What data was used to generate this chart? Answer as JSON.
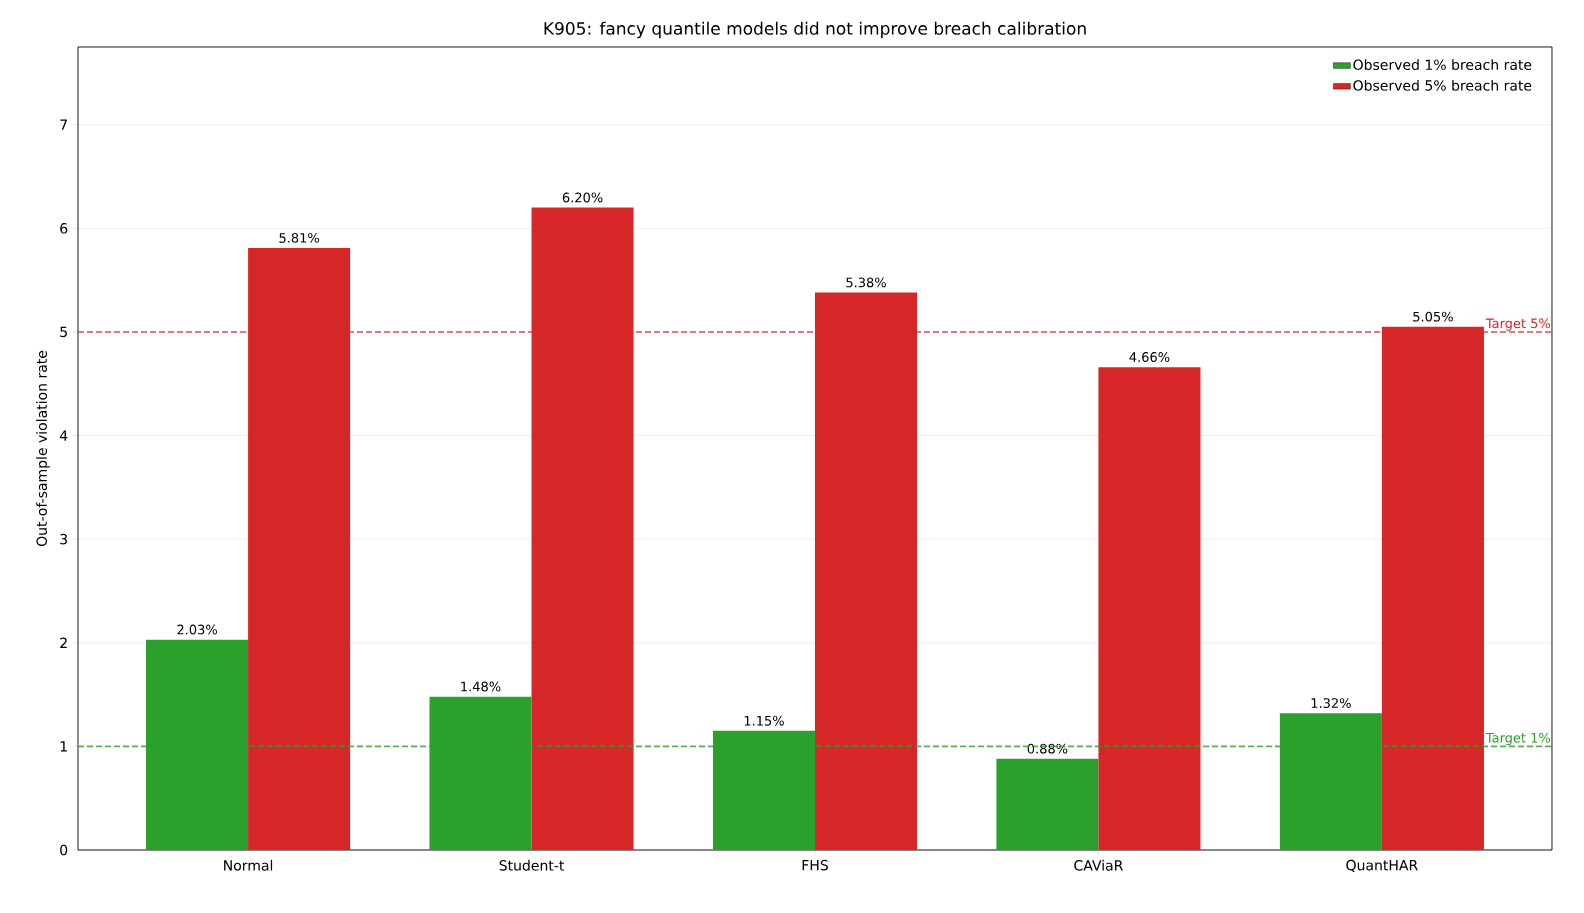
{
  "chart_data": {
    "type": "bar",
    "title": "K905: fancy quantile models did not improve breach calibration",
    "ylabel": "Out-of-sample violation rate",
    "categories": [
      "Normal",
      "Student-t",
      "FHS",
      "CAViaR",
      "QuantHAR"
    ],
    "series": [
      {
        "name": "Observed 1% breach rate",
        "color": "#2ca02c",
        "values": [
          2.03,
          1.48,
          1.15,
          0.88,
          1.32
        ],
        "value_labels": [
          "2.03%",
          "1.48%",
          "1.15%",
          "0.88%",
          "1.32%"
        ]
      },
      {
        "name": "Observed 5% breach rate",
        "color": "#d62728",
        "values": [
          5.81,
          6.2,
          5.38,
          4.66,
          5.05
        ],
        "value_labels": [
          "5.81%",
          "6.20%",
          "5.38%",
          "4.66%",
          "5.05%"
        ]
      }
    ],
    "ylim": [
      0,
      7.75
    ],
    "yticks": [
      0,
      1,
      2,
      3,
      4,
      5,
      6,
      7
    ],
    "grid": "y",
    "legend": "top right",
    "ref_lines": [
      {
        "axis": "y",
        "value": 1,
        "label": "Target 1%",
        "color": "#2ca02c",
        "line_style": "dashed"
      },
      {
        "axis": "y",
        "value": 5,
        "label": "Target 5%",
        "color": "#d62728",
        "line_style": "dashed"
      }
    ]
  }
}
